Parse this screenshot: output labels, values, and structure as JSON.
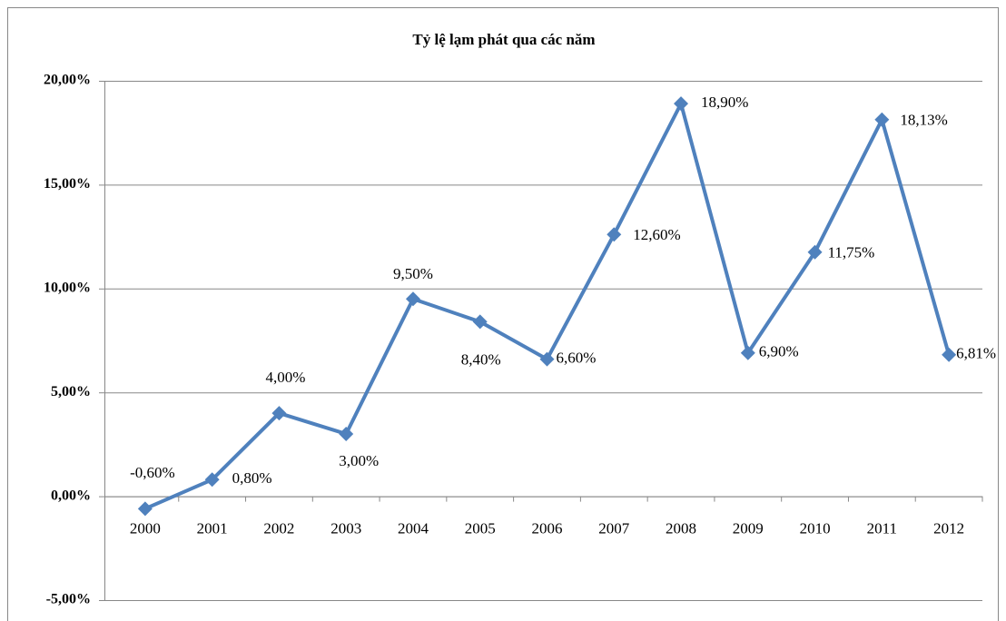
{
  "chart_data": {
    "type": "line",
    "title": "Tỷ lệ lạm phát qua các năm",
    "categories": [
      "2000",
      "2001",
      "2002",
      "2003",
      "2004",
      "2005",
      "2006",
      "2007",
      "2008",
      "2009",
      "2010",
      "2011",
      "2012"
    ],
    "series": [
      {
        "name": "Tỷ lệ lạm phát",
        "color": "#4f81bd",
        "values": [
          -0.6,
          0.8,
          4.0,
          3.0,
          9.5,
          8.4,
          6.6,
          12.6,
          18.9,
          6.9,
          11.75,
          18.13,
          6.81
        ],
        "value_labels": [
          "-0,60%",
          "0,80%",
          "4,00%",
          "3,00%",
          "9,50%",
          "8,40%",
          "6,60%",
          "12,60%",
          "18,90%",
          "6,90%",
          "11,75%",
          "18,13%",
          "6,81%"
        ]
      }
    ],
    "ylim": [
      -5,
      20
    ],
    "yticks": [
      {
        "value": -5,
        "label": "-5,00%"
      },
      {
        "value": 0,
        "label": "0,00%"
      },
      {
        "value": 5,
        "label": "5,00%"
      },
      {
        "value": 10,
        "label": "10,00%"
      },
      {
        "value": 15,
        "label": "15,00%"
      },
      {
        "value": 20,
        "label": "20,00%"
      }
    ],
    "grid": true
  }
}
